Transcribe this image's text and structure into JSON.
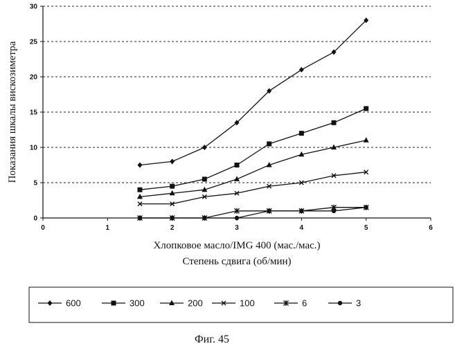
{
  "chart_data": {
    "type": "line",
    "xlabel": [
      "Хлопковое масло/IMG 400 (мас./мас.)",
      "Степень сдвига (об/мин)"
    ],
    "ylabel": "Показания шкалы вискозиметра",
    "xlim": [
      0,
      6
    ],
    "ylim": [
      0,
      30
    ],
    "xticks": [
      0,
      1,
      2,
      3,
      4,
      5,
      6
    ],
    "yticks": [
      0,
      5,
      10,
      15,
      20,
      25,
      30
    ],
    "grid": "horizontal dashed",
    "legend_position": "bottom",
    "x": [
      1.5,
      2,
      2.5,
      3,
      3.5,
      4,
      4.5,
      5
    ],
    "series": [
      {
        "name": "600",
        "marker": "diamond",
        "values": [
          7.5,
          8,
          10,
          13.5,
          18,
          21,
          23.5,
          28
        ]
      },
      {
        "name": "300",
        "marker": "square",
        "values": [
          4,
          4.5,
          5.5,
          7.5,
          10.5,
          12,
          13.5,
          15.5
        ]
      },
      {
        "name": "200",
        "marker": "triangle",
        "values": [
          3,
          3.5,
          4,
          5.5,
          7.5,
          9,
          10,
          11
        ]
      },
      {
        "name": "100",
        "marker": "x",
        "values": [
          2,
          2,
          3,
          3.5,
          4.5,
          5,
          6,
          6.5
        ]
      },
      {
        "name": "6",
        "marker": "star",
        "values": [
          0,
          0,
          0,
          1,
          1,
          1,
          1.5,
          1.5
        ]
      },
      {
        "name": "3",
        "marker": "circle",
        "values": [
          0,
          0,
          0,
          0,
          1,
          1,
          1,
          1.5
        ]
      }
    ]
  },
  "figure_caption": "Фиг. 45"
}
